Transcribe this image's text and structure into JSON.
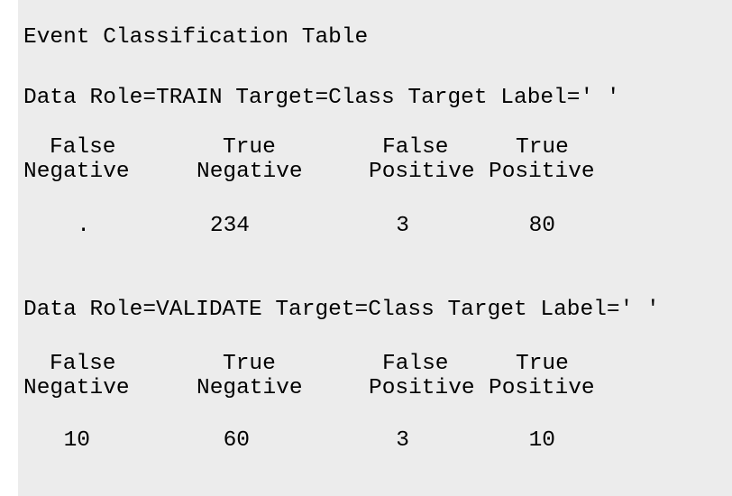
{
  "colors": {
    "page_bg": "#ffffff",
    "panel_bg": "#ececec",
    "text": "#000000"
  },
  "report": {
    "title": "Event Classification Table",
    "tables": [
      {
        "data_role": "TRAIN",
        "caption": "Data Role=TRAIN Target=Class Target Label=' '",
        "headers": [
          [
            "False",
            "Negative"
          ],
          [
            "True",
            "Negative"
          ],
          [
            "False",
            "Positive"
          ],
          [
            "True",
            "Positive"
          ]
        ],
        "values": [
          ".",
          "234",
          "3",
          "80"
        ]
      },
      {
        "data_role": "VALIDATE",
        "caption": "Data Role=VALIDATE Target=Class Target Label=' '",
        "headers": [
          [
            "False",
            "Negative"
          ],
          [
            "True",
            "Negative"
          ],
          [
            "False",
            "Positive"
          ],
          [
            "True",
            "Positive"
          ]
        ],
        "values": [
          "10",
          "60",
          "3",
          "10"
        ]
      }
    ]
  }
}
